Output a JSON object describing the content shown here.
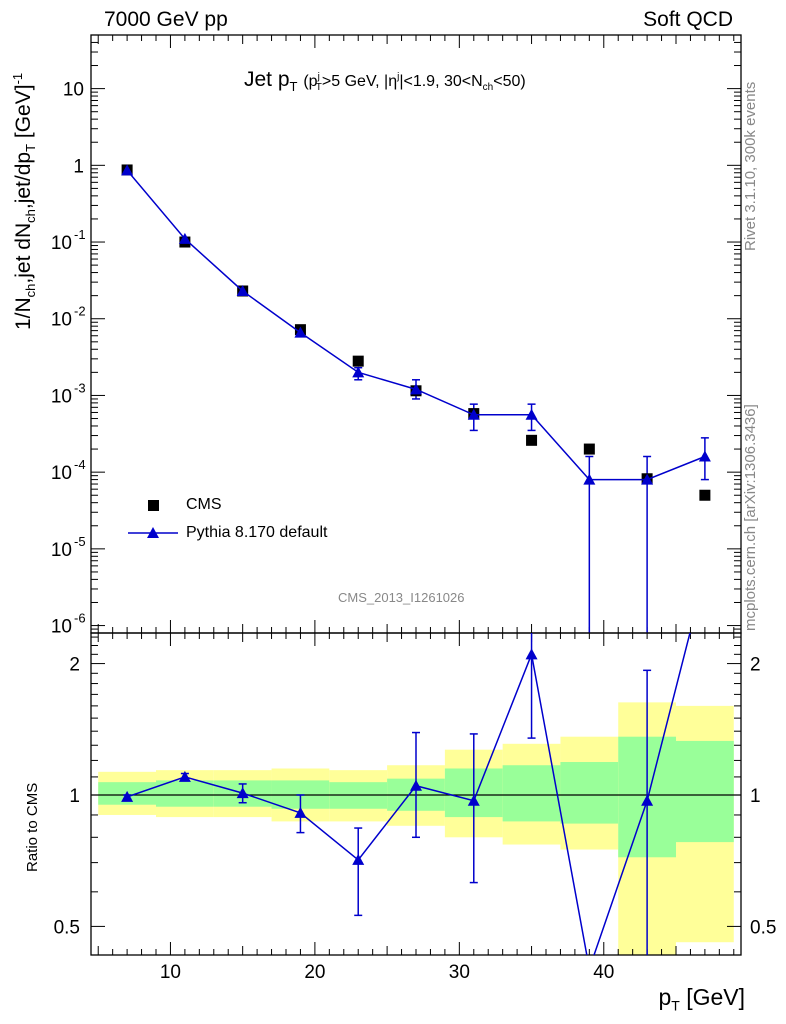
{
  "header": {
    "left": "7000 GeV pp",
    "right": "Soft QCD"
  },
  "side_labels": {
    "top": "Rivet 3.1.10,  300k events",
    "bottom": "mcplots.cern.ch [arXiv:1306.3436]"
  },
  "main_panel": {
    "title_main": "Jet p",
    "title_main_sub": "T",
    "title_cond_a": "(p",
    "title_cond_b": ">5 GeV, |η",
    "title_cond_c": "|<1.9, 30<N",
    "title_cond_d": "<50)",
    "title_sup_j": "j",
    "title_sub_T": "T",
    "title_sub_ch": "ch",
    "ylabel_a": "1/N",
    "ylabel_a_sub": "ch",
    "ylabel_b": ",jet dN",
    "ylabel_b_sub": "ch",
    "ylabel_c": ",jet/dp",
    "ylabel_c_sub": "T",
    "ylabel_d": "[GeV]",
    "ylabel_d_sup": "-1",
    "analysis_id": "CMS_2013_I1261026",
    "legend": {
      "cms": "CMS",
      "pythia": "Pythia 8.170 default"
    },
    "ytick_labels": [
      {
        "base": "10",
        "exp": "-6",
        "value": 1e-06
      },
      {
        "base": "10",
        "exp": "-5",
        "value": 1e-05
      },
      {
        "base": "10",
        "exp": "-4",
        "value": 0.0001
      },
      {
        "base": "10",
        "exp": "-3",
        "value": 0.001
      },
      {
        "base": "10",
        "exp": "-2",
        "value": 0.01
      },
      {
        "base": "10",
        "exp": "-1",
        "value": 0.1
      },
      {
        "base": "1",
        "exp": "",
        "value": 1
      },
      {
        "base": "10",
        "exp": "",
        "value": 10
      }
    ]
  },
  "ratio_panel": {
    "ylabel": "Ratio to CMS",
    "ytick_labels": [
      "0.5",
      "1",
      "2"
    ],
    "xlabel": "p",
    "xlabel_sub": "T",
    "xlabel_unit": "[GeV]",
    "xtick_labels": [
      "10",
      "20",
      "30",
      "40"
    ]
  },
  "colors": {
    "mc_line": "#0000cc",
    "data_marker": "#000000",
    "band_outer": "#ffff99",
    "band_inner": "#99ff99",
    "side_text": "#888888"
  },
  "chart_data": [
    {
      "type": "scatter",
      "panel": "main",
      "yscale": "log",
      "xlim": [
        4.5,
        49.5
      ],
      "ylim": [
        8e-07,
        50
      ],
      "title": "Jet pT (pT^j>5 GeV, |η^j|<1.9, 30<Nch<50)",
      "xlabel": "pT [GeV]",
      "ylabel": "1/Nch,jet dNch,jet/dpT [GeV]^-1",
      "legend_position": "bottom-left",
      "series": [
        {
          "name": "CMS",
          "marker": "square",
          "x": [
            7,
            11,
            15,
            19,
            23,
            27,
            31,
            35,
            39,
            43,
            47
          ],
          "y": [
            0.87,
            0.1,
            0.023,
            0.0072,
            0.0028,
            0.00115,
            0.00058,
            0.00026,
            0.0002,
            8.2e-05,
            5e-05
          ]
        },
        {
          "name": "Pythia 8.170 default",
          "marker": "triangle",
          "x": [
            7,
            11,
            15,
            19,
            23,
            27,
            31,
            35,
            39,
            43,
            47
          ],
          "y": [
            0.86,
            0.11,
            0.023,
            0.0066,
            0.002,
            0.0012,
            0.00056,
            0.00056,
            8e-05,
            8e-05,
            0.00016
          ],
          "err_low": [
            0.86,
            0.11,
            0.023,
            0.0066,
            0.002,
            0.0012,
            0.00056,
            0.00056,
            8e-05,
            8e-05,
            0.00016
          ],
          "err_low_abs": [
            0,
            0,
            0,
            0,
            0.0004,
            0.0003,
            0.00021,
            0.00021,
            8e-05,
            8e-05,
            8e-05
          ],
          "err_high_abs": [
            0,
            0,
            0,
            0,
            0.0003,
            0.0004,
            0.00021,
            0.00021,
            8e-05,
            8e-05,
            0.00012
          ]
        }
      ]
    },
    {
      "type": "line",
      "panel": "ratio",
      "yscale": "log",
      "xlim": [
        4.5,
        49.5
      ],
      "ylim": [
        0.43,
        2.35
      ],
      "xlabel": "pT [GeV]",
      "ylabel": "Ratio to CMS",
      "bins": [
        {
          "xlo": 5,
          "xhi": 9,
          "outer": [
            0.9,
            1.13
          ],
          "inner": [
            0.95,
            1.07
          ]
        },
        {
          "xlo": 9,
          "xhi": 13,
          "outer": [
            0.89,
            1.14
          ],
          "inner": [
            0.94,
            1.08
          ]
        },
        {
          "xlo": 13,
          "xhi": 17,
          "outer": [
            0.89,
            1.14
          ],
          "inner": [
            0.94,
            1.08
          ]
        },
        {
          "xlo": 17,
          "xhi": 21,
          "outer": [
            0.87,
            1.15
          ],
          "inner": [
            0.93,
            1.08
          ]
        },
        {
          "xlo": 21,
          "xhi": 25,
          "outer": [
            0.87,
            1.14
          ],
          "inner": [
            0.93,
            1.07
          ]
        },
        {
          "xlo": 25,
          "xhi": 29,
          "outer": [
            0.85,
            1.17
          ],
          "inner": [
            0.92,
            1.09
          ]
        },
        {
          "xlo": 29,
          "xhi": 33,
          "outer": [
            0.8,
            1.27
          ],
          "inner": [
            0.89,
            1.15
          ]
        },
        {
          "xlo": 33,
          "xhi": 37,
          "outer": [
            0.77,
            1.31
          ],
          "inner": [
            0.87,
            1.17
          ]
        },
        {
          "xlo": 37,
          "xhi": 41,
          "outer": [
            0.75,
            1.36
          ],
          "inner": [
            0.86,
            1.19
          ]
        },
        {
          "xlo": 41,
          "xhi": 45,
          "outer": [
            0.43,
            1.63
          ],
          "inner": [
            0.72,
            1.36
          ]
        },
        {
          "xlo": 45,
          "xhi": 49,
          "outer": [
            0.46,
            1.6
          ],
          "inner": [
            0.78,
            1.33
          ]
        }
      ],
      "series": [
        {
          "name": "Pythia 8.170 default",
          "x": [
            7,
            11,
            15,
            19,
            23,
            27,
            31,
            35,
            39,
            43,
            47
          ],
          "y": [
            0.99,
            1.1,
            1.01,
            0.91,
            0.71,
            1.05,
            0.97,
            2.1,
            0.4,
            0.97,
            3.2
          ],
          "err_low": [
            0.98,
            1.08,
            0.96,
            0.82,
            0.53,
            0.8,
            0.63,
            1.35,
            0.4,
            0.4,
            3.2
          ],
          "err_high": [
            1.0,
            1.12,
            1.06,
            1.0,
            0.84,
            1.39,
            1.38,
            2.5,
            0.4,
            1.93,
            3.2
          ]
        }
      ]
    }
  ]
}
